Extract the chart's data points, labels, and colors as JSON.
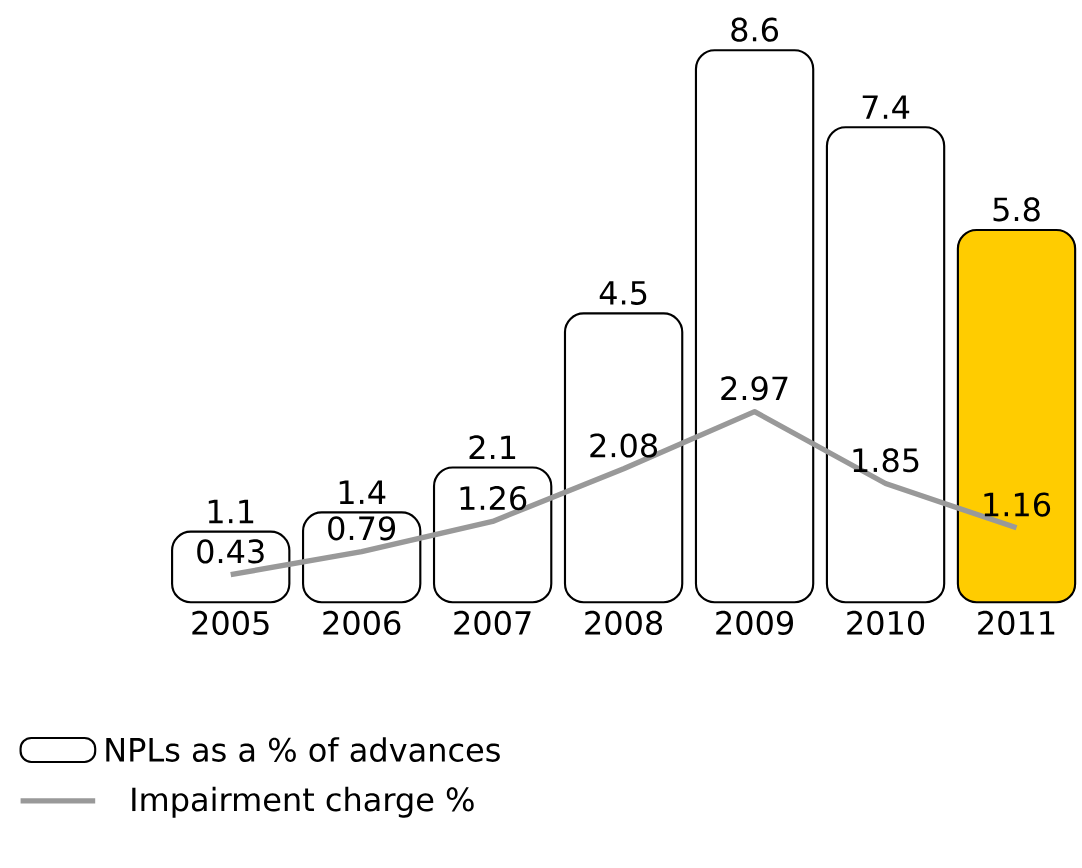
{
  "chart_data": {
    "type": "bar",
    "categories": [
      "2005",
      "2006",
      "2007",
      "2008",
      "2009",
      "2010",
      "2011"
    ],
    "series": [
      {
        "name": "NPLs as a % of advances",
        "colors": [
          "#ffffff",
          "#ffffff",
          "#ffffff",
          "#ffffff",
          "#ffffff",
          "#ffffff",
          "#ffcc00"
        ],
        "values": [
          1.1,
          1.4,
          2.1,
          4.5,
          8.6,
          7.4,
          5.8
        ]
      },
      {
        "name": "Impairment charge %",
        "type": "line",
        "color": "#999999",
        "values": [
          0.43,
          0.79,
          1.26,
          2.08,
          2.97,
          1.85,
          1.16
        ]
      }
    ],
    "data_labels": true,
    "legend": "bottom"
  }
}
